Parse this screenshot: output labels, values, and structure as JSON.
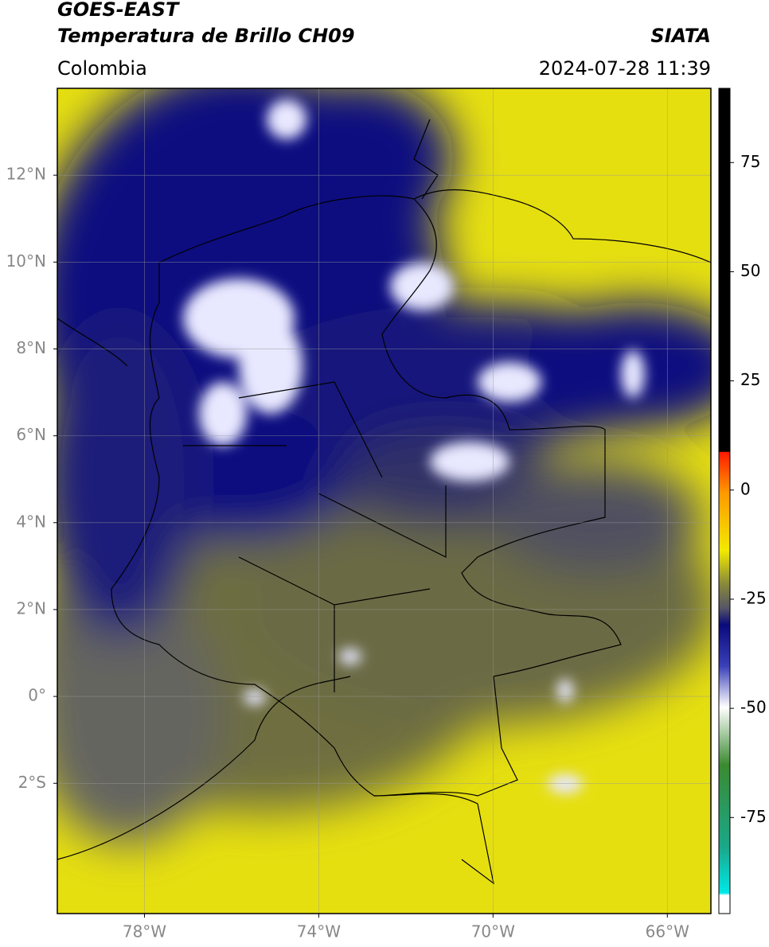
{
  "header": {
    "title": "GOES-EAST",
    "subtitle": "Temperatura de Brillo CH09",
    "source": "SIATA",
    "region": "Colombia",
    "timestamp": "2024-07-28 11:39"
  },
  "map": {
    "lonlim": [
      -80,
      -65
    ],
    "latlim": [
      -5,
      14
    ],
    "grid": true,
    "lon_ticks": [
      {
        "value": -78,
        "label": "78°W"
      },
      {
        "value": -74,
        "label": "74°W"
      },
      {
        "value": -70,
        "label": "70°W"
      },
      {
        "value": -66,
        "label": "66°W"
      }
    ],
    "lat_ticks": [
      {
        "value": 12,
        "label": "12°N"
      },
      {
        "value": 10,
        "label": "10°N"
      },
      {
        "value": 8,
        "label": "8°N"
      },
      {
        "value": 6,
        "label": "6°N"
      },
      {
        "value": 4,
        "label": "4°N"
      },
      {
        "value": 2,
        "label": "2°N"
      },
      {
        "value": 0,
        "label": "0°"
      },
      {
        "value": -2,
        "label": "2°S"
      }
    ]
  },
  "colorbar": {
    "lim": [
      -97,
      92
    ],
    "ticks": [
      75,
      50,
      25,
      0,
      -25,
      -50,
      -75
    ]
  }
}
